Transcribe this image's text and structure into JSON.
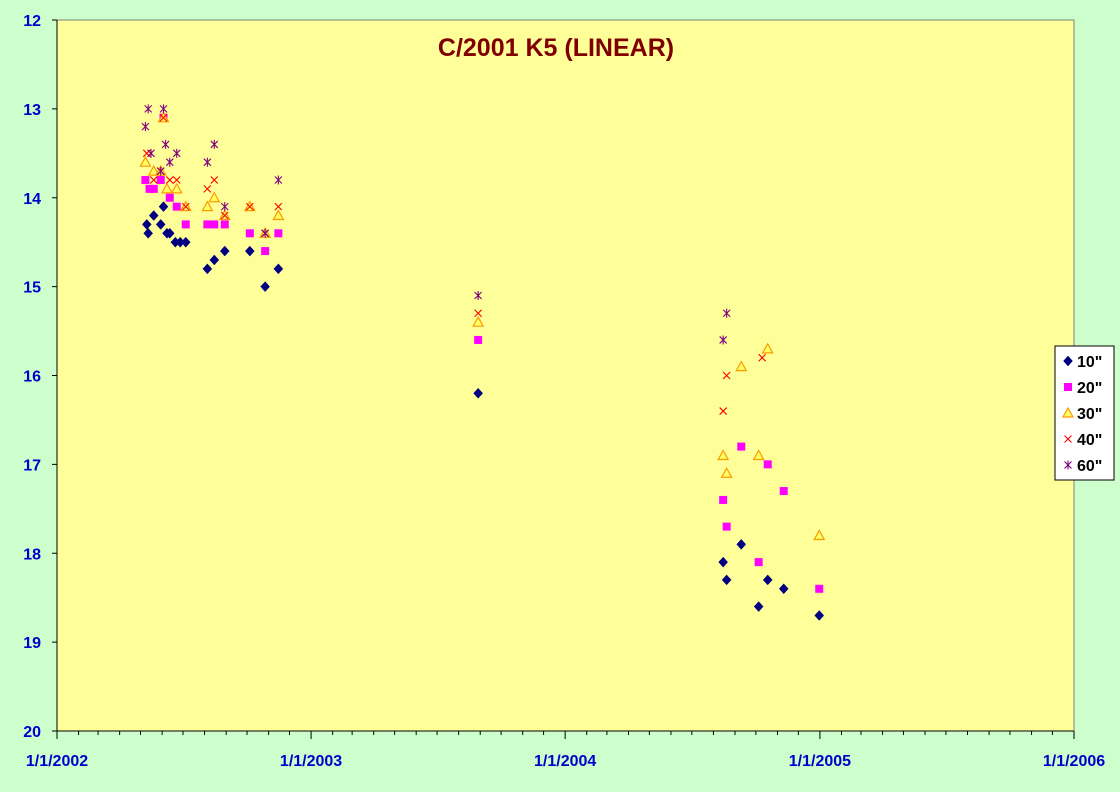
{
  "chart_data": {
    "type": "scatter",
    "title": "C/2001 K5 (LINEAR)",
    "xlabel": "",
    "ylabel": "",
    "x_axis": {
      "type": "date",
      "range": [
        "2002-01-01",
        "2006-01-01"
      ],
      "tick_labels": [
        "1/1/2002",
        "1/1/2003",
        "1/1/2004",
        "1/1/2005",
        "1/1/2006"
      ],
      "minor_ticks": "monthly"
    },
    "y_axis": {
      "range": [
        12,
        20
      ],
      "reversed": true,
      "tick_labels": [
        "12",
        "13",
        "14",
        "15",
        "16",
        "17",
        "18",
        "19",
        "20"
      ]
    },
    "grid": false,
    "legend_placement": "right",
    "colors": {
      "page_background": "#ccffcc",
      "plot_background": "#ffff99",
      "title": "#800000",
      "tick_labels": "#0000cc"
    },
    "series": [
      {
        "name": "10\"",
        "marker": "diamond",
        "color": "#000080",
        "points": [
          [
            "2002-05-10",
            14.3
          ],
          [
            "2002-05-12",
            14.4
          ],
          [
            "2002-05-20",
            14.2
          ],
          [
            "2002-05-30",
            14.3
          ],
          [
            "2002-06-03",
            14.1
          ],
          [
            "2002-06-08",
            14.4
          ],
          [
            "2002-06-12",
            14.4
          ],
          [
            "2002-06-20",
            14.5
          ],
          [
            "2002-06-27",
            14.5
          ],
          [
            "2002-07-05",
            14.5
          ],
          [
            "2002-08-05",
            14.8
          ],
          [
            "2002-08-15",
            14.7
          ],
          [
            "2002-08-30",
            14.6
          ],
          [
            "2002-10-05",
            14.6
          ],
          [
            "2002-10-27",
            15.0
          ],
          [
            "2002-11-15",
            14.8
          ],
          [
            "2003-08-29",
            16.2
          ],
          [
            "2004-08-15",
            18.1
          ],
          [
            "2004-08-20",
            18.3
          ],
          [
            "2004-09-10",
            17.9
          ],
          [
            "2004-10-05",
            18.6
          ],
          [
            "2004-10-18",
            18.3
          ],
          [
            "2004-11-10",
            18.4
          ],
          [
            "2004-12-31",
            18.7
          ]
        ]
      },
      {
        "name": "20\"",
        "marker": "square",
        "color": "#ff00ff",
        "points": [
          [
            "2002-05-08",
            13.8
          ],
          [
            "2002-05-14",
            13.9
          ],
          [
            "2002-05-20",
            13.9
          ],
          [
            "2002-05-30",
            13.8
          ],
          [
            "2002-06-03",
            13.1
          ],
          [
            "2002-06-12",
            14.0
          ],
          [
            "2002-06-22",
            14.1
          ],
          [
            "2002-07-05",
            14.3
          ],
          [
            "2002-08-05",
            14.3
          ],
          [
            "2002-08-15",
            14.3
          ],
          [
            "2002-08-30",
            14.3
          ],
          [
            "2002-10-05",
            14.4
          ],
          [
            "2002-10-27",
            14.6
          ],
          [
            "2002-11-15",
            14.4
          ],
          [
            "2003-08-29",
            15.6
          ],
          [
            "2004-08-15",
            17.4
          ],
          [
            "2004-08-20",
            17.7
          ],
          [
            "2004-09-10",
            16.8
          ],
          [
            "2004-10-05",
            18.1
          ],
          [
            "2004-10-18",
            17.0
          ],
          [
            "2004-11-10",
            17.3
          ],
          [
            "2004-12-31",
            18.4
          ]
        ]
      },
      {
        "name": "30\"",
        "marker": "triangle",
        "color": "#ff9900",
        "points": [
          [
            "2002-05-08",
            13.6
          ],
          [
            "2002-05-20",
            13.7
          ],
          [
            "2002-05-30",
            13.7
          ],
          [
            "2002-06-03",
            13.1
          ],
          [
            "2002-06-08",
            13.9
          ],
          [
            "2002-06-22",
            13.9
          ],
          [
            "2002-07-05",
            14.1
          ],
          [
            "2002-08-05",
            14.1
          ],
          [
            "2002-08-15",
            14.0
          ],
          [
            "2002-08-30",
            14.2
          ],
          [
            "2002-10-05",
            14.1
          ],
          [
            "2002-10-27",
            14.4
          ],
          [
            "2002-11-15",
            14.2
          ],
          [
            "2003-08-29",
            15.4
          ],
          [
            "2004-08-15",
            16.9
          ],
          [
            "2004-08-20",
            17.1
          ],
          [
            "2004-09-10",
            15.9
          ],
          [
            "2004-10-05",
            16.9
          ],
          [
            "2004-10-18",
            15.7
          ],
          [
            "2004-12-31",
            17.8
          ]
        ]
      },
      {
        "name": "40\"",
        "marker": "x",
        "color": "#ff0000",
        "points": [
          [
            "2002-05-10",
            13.5
          ],
          [
            "2002-05-20",
            13.8
          ],
          [
            "2002-05-30",
            13.7
          ],
          [
            "2002-06-03",
            13.1
          ],
          [
            "2002-06-12",
            13.8
          ],
          [
            "2002-06-22",
            13.8
          ],
          [
            "2002-07-05",
            14.1
          ],
          [
            "2002-08-05",
            13.9
          ],
          [
            "2002-08-15",
            13.8
          ],
          [
            "2002-08-30",
            14.2
          ],
          [
            "2002-10-05",
            14.1
          ],
          [
            "2002-10-27",
            14.4
          ],
          [
            "2002-11-15",
            14.1
          ],
          [
            "2003-08-29",
            15.3
          ],
          [
            "2004-08-15",
            16.4
          ],
          [
            "2004-08-20",
            16.0
          ],
          [
            "2004-10-10",
            15.8
          ]
        ]
      },
      {
        "name": "60\"",
        "marker": "asterisk",
        "color": "#800080",
        "points": [
          [
            "2002-05-08",
            13.2
          ],
          [
            "2002-05-12",
            13.0
          ],
          [
            "2002-05-16",
            13.5
          ],
          [
            "2002-05-30",
            13.7
          ],
          [
            "2002-06-03",
            13.0
          ],
          [
            "2002-06-06",
            13.4
          ],
          [
            "2002-06-12",
            13.6
          ],
          [
            "2002-06-22",
            13.5
          ],
          [
            "2002-08-05",
            13.6
          ],
          [
            "2002-08-15",
            13.4
          ],
          [
            "2002-08-30",
            14.1
          ],
          [
            "2002-10-27",
            14.4
          ],
          [
            "2002-11-15",
            13.8
          ],
          [
            "2003-08-29",
            15.1
          ],
          [
            "2004-08-15",
            15.6
          ],
          [
            "2004-08-20",
            15.3
          ]
        ]
      }
    ]
  }
}
